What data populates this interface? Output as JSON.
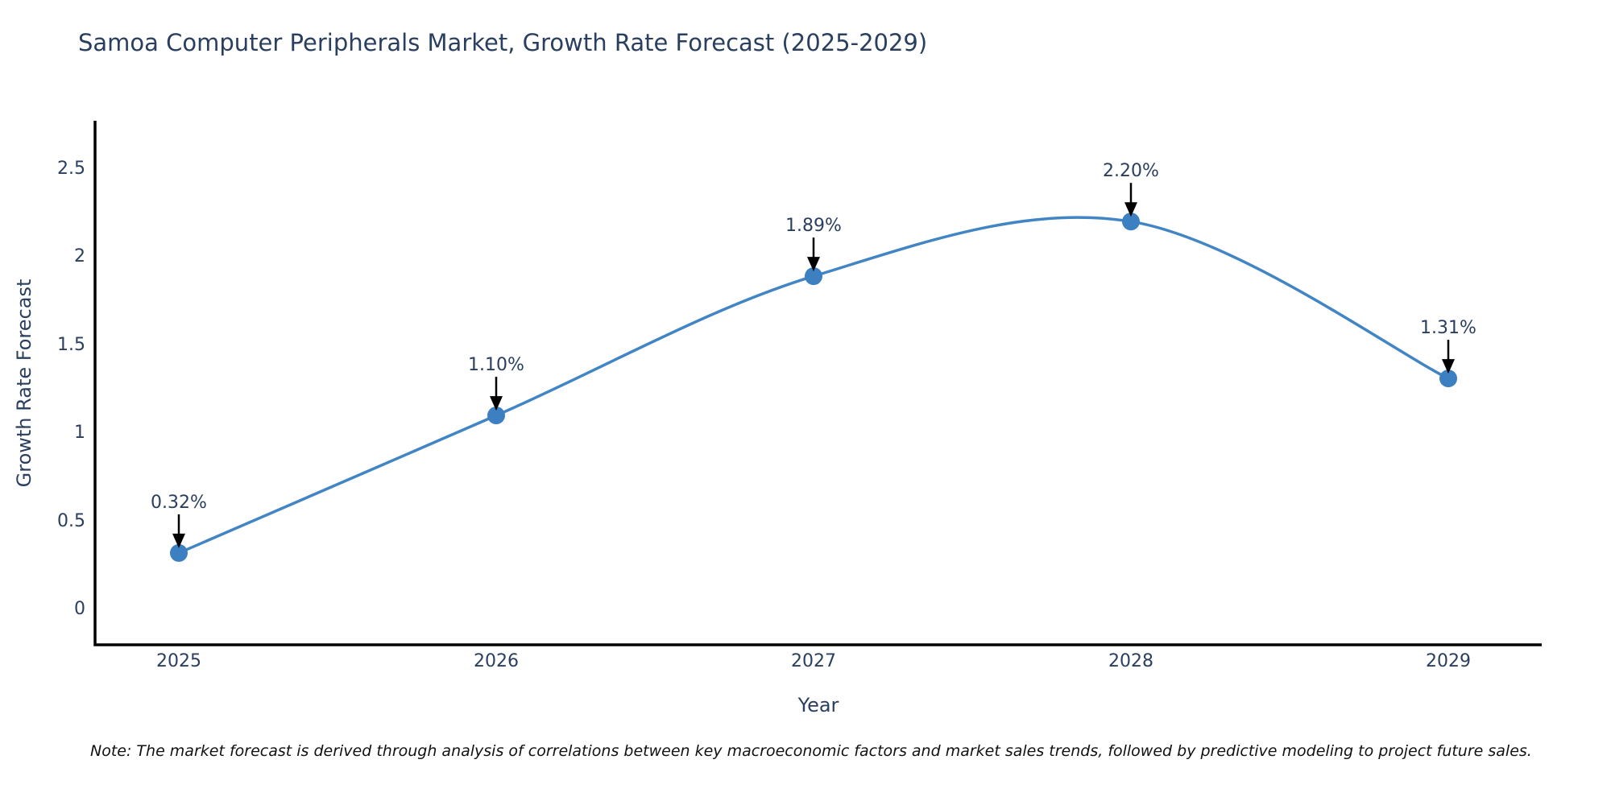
{
  "title": "Samoa Computer Peripherals Market, Growth Rate Forecast (2025-2029)",
  "note": "Note: The market forecast is derived through analysis of correlations between key macroeconomic factors and market sales trends, followed by predictive modeling to project future sales.",
  "chart_data": {
    "type": "line",
    "line_shape": "spline",
    "title": "Samoa Computer Peripherals Market, Growth Rate Forecast (2025-2029)",
    "xlabel": "Year",
    "ylabel": "Growth Rate Forecast",
    "categories": [
      "2025",
      "2026",
      "2027",
      "2028",
      "2029"
    ],
    "values": [
      0.32,
      1.1,
      1.89,
      2.2,
      1.31
    ],
    "point_labels": [
      "0.32%",
      "1.10%",
      "1.89%",
      "2.20%",
      "1.31%"
    ],
    "ytick_values": [
      0,
      0.5,
      1,
      1.5,
      2,
      2.5
    ],
    "ytick_labels": [
      "0",
      "0.5",
      "1",
      "1.5",
      "2",
      "2.5"
    ],
    "ylim": [
      -0.21,
      2.75
    ],
    "grid": false,
    "legend": "none",
    "line_color": "#4285c5",
    "marker_color": "#3c80c1",
    "axis_color": "#000000",
    "text_color": "#2a3f5f",
    "annotation_arrow_color": "#000000"
  }
}
